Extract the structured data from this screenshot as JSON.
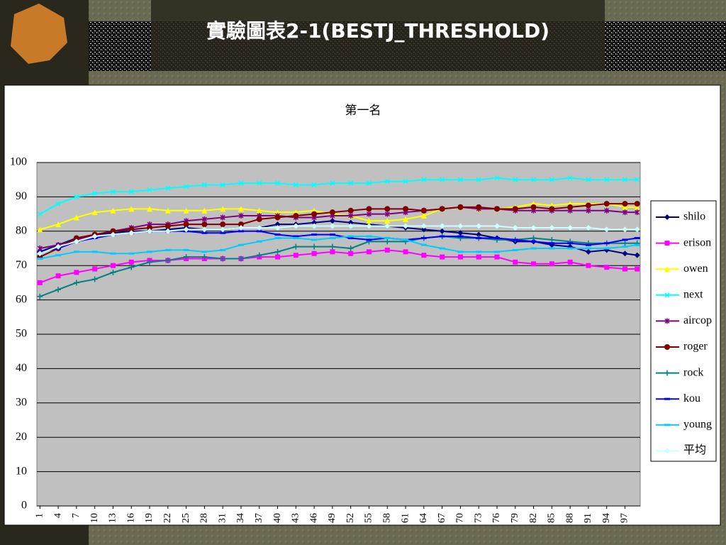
{
  "slide_title": "實驗圖表2-1(BESTJ_THRESHOLD)",
  "chart_data": {
    "type": "line",
    "title": "第一名",
    "x": [
      1,
      4,
      7,
      10,
      13,
      16,
      19,
      22,
      25,
      28,
      31,
      34,
      37,
      40,
      43,
      46,
      49,
      52,
      55,
      58,
      61,
      64,
      67,
      70,
      73,
      76,
      79,
      82,
      85,
      88,
      91,
      94,
      97,
      99
    ],
    "xlim": [
      0.5,
      99.5
    ],
    "xticks": [
      1,
      4,
      7,
      10,
      13,
      16,
      19,
      22,
      25,
      28,
      31,
      34,
      37,
      40,
      43,
      46,
      49,
      52,
      55,
      58,
      61,
      64,
      67,
      70,
      73,
      76,
      79,
      82,
      85,
      88,
      91,
      94,
      97
    ],
    "ylim": [
      0,
      100
    ],
    "yticks": [
      0,
      10,
      20,
      30,
      40,
      50,
      60,
      70,
      80,
      90,
      100
    ],
    "grid": true,
    "legend": "right",
    "series": [
      {
        "name": "shilo",
        "color": "#000080",
        "values": [
          74,
          76,
          78,
          79,
          79.5,
          80,
          80,
          80.5,
          81,
          80.5,
          80.5,
          81,
          81,
          82,
          82,
          82.5,
          83,
          82.5,
          82,
          81.5,
          81,
          80.5,
          80,
          79.5,
          79,
          78,
          77,
          77,
          76,
          75.5,
          74,
          74.5,
          73.5,
          73
        ]
      },
      {
        "name": "erison",
        "color": "#ff00ff",
        "values": [
          65,
          67,
          68,
          69,
          70,
          71,
          71.5,
          71.5,
          72,
          72,
          72,
          72,
          72.5,
          72.5,
          73,
          73.5,
          74,
          73.5,
          74,
          74.5,
          74,
          73,
          72.5,
          72.5,
          72.5,
          72.5,
          71,
          70.5,
          70.5,
          71,
          70,
          69.5,
          69,
          69
        ]
      },
      {
        "name": "owen",
        "color": "#ffff00",
        "values": [
          80.5,
          82,
          84,
          85.5,
          86,
          86.5,
          86.5,
          86,
          86,
          86,
          86.5,
          86.5,
          86,
          85.5,
          85.5,
          86,
          85,
          84.5,
          83,
          83,
          83.5,
          84.5,
          86.5,
          87,
          86.5,
          86.5,
          87,
          88,
          87.5,
          88,
          88,
          88,
          87,
          87
        ]
      },
      {
        "name": "next",
        "color": "#00ffff",
        "values": [
          85,
          88,
          90,
          91,
          91.5,
          91.5,
          92,
          92.5,
          93,
          93.5,
          93.5,
          94,
          94,
          94,
          93.5,
          93.5,
          94,
          94,
          94,
          94.5,
          94.5,
          95,
          95,
          95,
          95,
          95.5,
          95,
          95,
          95,
          95.5,
          95,
          95,
          95,
          95
        ]
      },
      {
        "name": "aircop",
        "color": "#800080",
        "values": [
          75,
          76,
          77.5,
          79,
          80,
          81,
          82,
          82,
          83,
          83.5,
          84,
          84.5,
          84.5,
          84.5,
          84,
          84,
          84.5,
          84.5,
          85,
          85,
          85.5,
          86,
          86.5,
          87,
          86.5,
          86.5,
          86,
          86,
          86,
          86,
          86,
          86,
          85.5,
          85.5
        ]
      },
      {
        "name": "roger",
        "color": "#800000",
        "values": [
          72.5,
          75,
          78,
          79,
          80,
          80.5,
          81,
          81.5,
          82,
          82,
          82,
          82,
          83.5,
          84,
          84.5,
          85,
          85.5,
          86,
          86.5,
          86.5,
          86.5,
          86,
          86.5,
          87,
          87,
          86.5,
          86.5,
          87,
          86.5,
          87,
          87.5,
          88,
          88,
          88
        ]
      },
      {
        "name": "rock",
        "color": "#008080",
        "values": [
          61,
          63,
          65,
          66,
          68,
          69.5,
          71,
          71.5,
          72.5,
          72.5,
          72,
          72,
          73,
          74,
          75.5,
          75.5,
          75.5,
          75,
          77,
          77,
          77,
          78,
          78.5,
          78,
          78,
          77.5,
          77.5,
          78,
          77.5,
          77,
          76.5,
          76.5,
          76.5,
          76.5
        ]
      },
      {
        "name": "kou",
        "color": "#0000ff",
        "values": [
          74,
          75,
          77,
          78,
          79,
          79.5,
          80,
          80,
          80,
          79.5,
          79.5,
          80,
          80,
          79,
          78.5,
          79,
          79,
          78,
          77.5,
          78,
          77.5,
          78,
          78.5,
          78.5,
          78,
          78,
          77.5,
          77,
          76.5,
          76.5,
          76,
          76.5,
          77.5,
          78
        ]
      },
      {
        "name": "young",
        "color": "#00ccff",
        "values": [
          72,
          73,
          74,
          74,
          73.5,
          73.5,
          74,
          74.5,
          74.5,
          74,
          74.5,
          76,
          77,
          78,
          78,
          77.5,
          78,
          78.5,
          78.5,
          78,
          77.5,
          76,
          75,
          74,
          74,
          74,
          74.5,
          75,
          75,
          75,
          75,
          75,
          75.5,
          76
        ]
      },
      {
        "name": "平均",
        "color": "#ccffff",
        "values": [
          73.5,
          75.5,
          77,
          78.5,
          79,
          79.5,
          80,
          80,
          80.5,
          80.5,
          80.5,
          81,
          81,
          81,
          81.5,
          81.5,
          81.5,
          81.5,
          81.5,
          81.5,
          81.5,
          81.5,
          81.5,
          81.5,
          81.5,
          81.5,
          81,
          81,
          81,
          81,
          81,
          80.5,
          80.5,
          80.5
        ]
      }
    ]
  }
}
